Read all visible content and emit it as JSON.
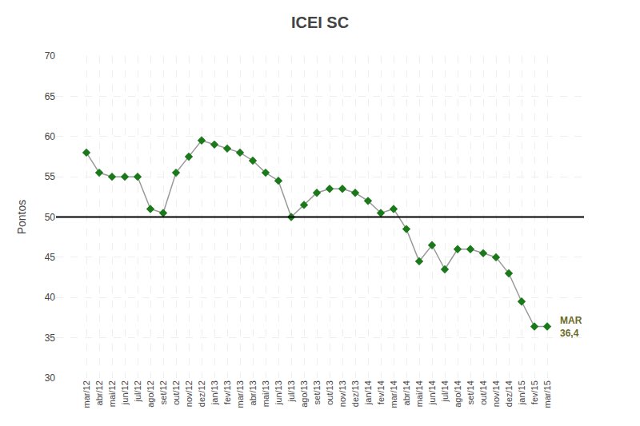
{
  "chart_data": {
    "type": "line",
    "title": "ICEI SC",
    "ylabel": "Pontos",
    "categories": [
      "mar/12",
      "abr/12",
      "mai/12",
      "jun/12",
      "jul/12",
      "ago/12",
      "set/12",
      "out/12",
      "nov/12",
      "dez/12",
      "jan/13",
      "fev/13",
      "mar/13",
      "abr/13",
      "mai/13",
      "jun/13",
      "jul/13",
      "ago/13",
      "set/13",
      "out/13",
      "nov/13",
      "dez/13",
      "jan/14",
      "fev/14",
      "mar/14",
      "abr/14",
      "mai/14",
      "jun/14",
      "jul/14",
      "ago/14",
      "set/14",
      "out/14",
      "nov/14",
      "dez/14",
      "jan/15",
      "fev/15",
      "mar/15"
    ],
    "series": [
      {
        "type": "line",
        "color": "#999999",
        "values": [
          58.0,
          55.5,
          55.0,
          55.0,
          55.0,
          51.0,
          50.5,
          55.5,
          57.5,
          59.5,
          59.0,
          58.5,
          58.0,
          57.0,
          55.5,
          54.5,
          50.0,
          51.5,
          53.0,
          53.5,
          53.5,
          53.0,
          52.0,
          50.5,
          51.0,
          48.5,
          44.5,
          46.5,
          43.5,
          46.0,
          46.0,
          45.5,
          45.0,
          43.0,
          39.5,
          36.4,
          36.4
        ]
      },
      {
        "type": "scatter",
        "color": "#1a7a1a",
        "marker": "diamond",
        "values": [
          58.0,
          55.5,
          55.0,
          55.0,
          55.0,
          51.0,
          50.5,
          55.5,
          57.5,
          59.5,
          59.0,
          58.5,
          58.0,
          57.0,
          55.5,
          54.5,
          50.0,
          51.5,
          53.0,
          53.5,
          53.5,
          53.0,
          52.0,
          50.5,
          51.0,
          48.5,
          44.5,
          46.5,
          43.5,
          46.0,
          46.0,
          45.5,
          45.0,
          43.0,
          39.5,
          36.4,
          36.4
        ]
      }
    ],
    "reference_line": 50,
    "annotations": [
      {
        "x": "mar/15",
        "y": 36.4,
        "text": "MAR\n36,4",
        "color": "#6b6b2a"
      }
    ],
    "ylim": [
      30,
      70
    ],
    "yticks": [
      30,
      35,
      40,
      45,
      50,
      55,
      60,
      65,
      70
    ],
    "grid": true
  }
}
